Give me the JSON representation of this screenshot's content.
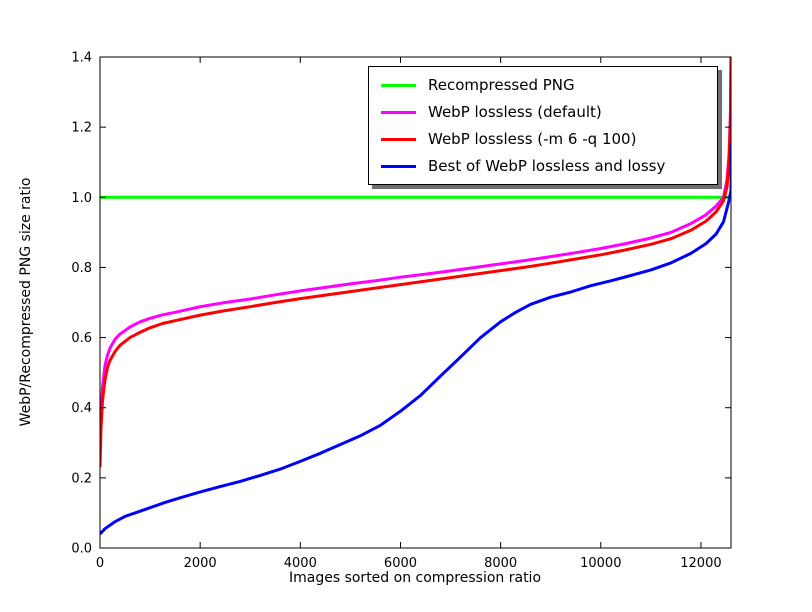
{
  "chart_data": {
    "type": "line",
    "title": "",
    "xlabel": "Images sorted on compression ratio",
    "ylabel": "WebP/Recompressed PNG size ratio",
    "xlim": [
      0,
      12600
    ],
    "ylim": [
      0.0,
      1.4
    ],
    "grid": false,
    "legend_position": "upper center-right",
    "legend_shadow": true,
    "xticks": {
      "values": [
        0,
        2000,
        4000,
        6000,
        8000,
        10000,
        12000
      ],
      "labels": [
        "0",
        "2000",
        "4000",
        "6000",
        "8000",
        "10000",
        "12000"
      ]
    },
    "yticks": {
      "values": [
        0.0,
        0.2,
        0.4,
        0.6,
        0.8,
        1.0,
        1.2,
        1.4
      ],
      "labels": [
        "0.0",
        "0.2",
        "0.4",
        "0.6",
        "0.8",
        "1.0",
        "1.2",
        "1.4"
      ]
    },
    "series": [
      {
        "name": "Recompressed PNG",
        "color": "#00ff00",
        "points": [
          [
            0,
            1.0
          ],
          [
            12600,
            1.0
          ]
        ]
      },
      {
        "name": "WebP lossless (default)",
        "color": "#ff00ff",
        "points": [
          [
            0,
            0.27
          ],
          [
            20,
            0.38
          ],
          [
            50,
            0.46
          ],
          [
            100,
            0.52
          ],
          [
            150,
            0.55
          ],
          [
            200,
            0.57
          ],
          [
            300,
            0.595
          ],
          [
            400,
            0.61
          ],
          [
            600,
            0.63
          ],
          [
            800,
            0.645
          ],
          [
            1000,
            0.655
          ],
          [
            1250,
            0.665
          ],
          [
            1500,
            0.672
          ],
          [
            2000,
            0.688
          ],
          [
            2500,
            0.7
          ],
          [
            3000,
            0.71
          ],
          [
            3500,
            0.722
          ],
          [
            4000,
            0.733
          ],
          [
            4500,
            0.743
          ],
          [
            5000,
            0.753
          ],
          [
            5500,
            0.762
          ],
          [
            6000,
            0.772
          ],
          [
            6500,
            0.781
          ],
          [
            7000,
            0.79
          ],
          [
            7500,
            0.8
          ],
          [
            8000,
            0.81
          ],
          [
            8500,
            0.82
          ],
          [
            9000,
            0.831
          ],
          [
            9500,
            0.842
          ],
          [
            10000,
            0.854
          ],
          [
            10500,
            0.868
          ],
          [
            11000,
            0.884
          ],
          [
            11400,
            0.9
          ],
          [
            11800,
            0.925
          ],
          [
            12100,
            0.95
          ],
          [
            12300,
            0.975
          ],
          [
            12450,
            1.0
          ],
          [
            12520,
            1.05
          ],
          [
            12560,
            1.12
          ],
          [
            12590,
            1.25
          ],
          [
            12600,
            1.4
          ]
        ]
      },
      {
        "name": "WebP lossless (-m 6 -q 100)",
        "color": "#ff0000",
        "points": [
          [
            0,
            0.23
          ],
          [
            20,
            0.34
          ],
          [
            50,
            0.42
          ],
          [
            100,
            0.48
          ],
          [
            150,
            0.515
          ],
          [
            200,
            0.535
          ],
          [
            300,
            0.56
          ],
          [
            400,
            0.578
          ],
          [
            600,
            0.6
          ],
          [
            800,
            0.615
          ],
          [
            1000,
            0.628
          ],
          [
            1250,
            0.64
          ],
          [
            1500,
            0.648
          ],
          [
            2000,
            0.664
          ],
          [
            2500,
            0.677
          ],
          [
            3000,
            0.688
          ],
          [
            3500,
            0.7
          ],
          [
            4000,
            0.711
          ],
          [
            4500,
            0.721
          ],
          [
            5000,
            0.731
          ],
          [
            5500,
            0.741
          ],
          [
            6000,
            0.751
          ],
          [
            6500,
            0.761
          ],
          [
            7000,
            0.771
          ],
          [
            7500,
            0.781
          ],
          [
            8000,
            0.791
          ],
          [
            8500,
            0.801
          ],
          [
            9000,
            0.812
          ],
          [
            9500,
            0.824
          ],
          [
            10000,
            0.836
          ],
          [
            10500,
            0.85
          ],
          [
            11000,
            0.866
          ],
          [
            11400,
            0.882
          ],
          [
            11800,
            0.906
          ],
          [
            12100,
            0.932
          ],
          [
            12300,
            0.958
          ],
          [
            12450,
            0.99
          ],
          [
            12520,
            1.03
          ],
          [
            12560,
            1.1
          ],
          [
            12590,
            1.22
          ],
          [
            12600,
            1.4
          ]
        ]
      },
      {
        "name": "Best of WebP lossless and lossy",
        "color": "#0000ff",
        "points": [
          [
            0,
            0.04
          ],
          [
            100,
            0.055
          ],
          [
            200,
            0.065
          ],
          [
            300,
            0.075
          ],
          [
            500,
            0.09
          ],
          [
            700,
            0.1
          ],
          [
            1000,
            0.115
          ],
          [
            1300,
            0.13
          ],
          [
            1600,
            0.143
          ],
          [
            2000,
            0.16
          ],
          [
            2400,
            0.175
          ],
          [
            2800,
            0.19
          ],
          [
            3200,
            0.207
          ],
          [
            3600,
            0.225
          ],
          [
            4000,
            0.247
          ],
          [
            4400,
            0.27
          ],
          [
            4800,
            0.295
          ],
          [
            5200,
            0.32
          ],
          [
            5600,
            0.35
          ],
          [
            6000,
            0.39
          ],
          [
            6400,
            0.435
          ],
          [
            6800,
            0.49
          ],
          [
            7200,
            0.545
          ],
          [
            7600,
            0.6
          ],
          [
            8000,
            0.645
          ],
          [
            8300,
            0.672
          ],
          [
            8600,
            0.695
          ],
          [
            9000,
            0.715
          ],
          [
            9400,
            0.73
          ],
          [
            9800,
            0.748
          ],
          [
            10200,
            0.762
          ],
          [
            10600,
            0.777
          ],
          [
            11000,
            0.793
          ],
          [
            11400,
            0.813
          ],
          [
            11800,
            0.84
          ],
          [
            12100,
            0.868
          ],
          [
            12300,
            0.895
          ],
          [
            12450,
            0.93
          ],
          [
            12550,
            0.985
          ],
          [
            12600,
            1.02
          ],
          [
            12600,
            1.15
          ]
        ]
      }
    ]
  }
}
